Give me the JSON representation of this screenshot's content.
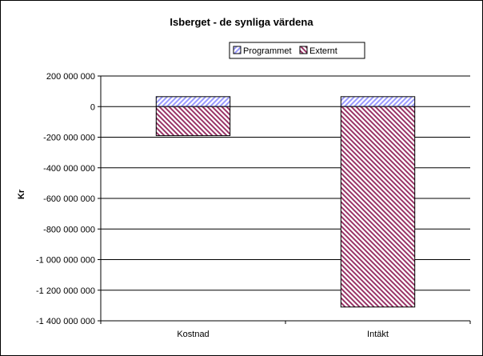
{
  "chart_data": {
    "type": "bar",
    "stacked": true,
    "title": "Isberget - de synliga värdena",
    "ylabel": "Kr",
    "xlabel": "",
    "categories": [
      "Kostnad",
      "Intäkt"
    ],
    "series": [
      {
        "name": "Programmet",
        "values": [
          65000000,
          65000000
        ],
        "color": "#9999ff",
        "pattern": "diagonal-up"
      },
      {
        "name": "Externt",
        "values": [
          -190000000,
          -1310000000
        ],
        "color": "#993366",
        "pattern": "diagonal-down"
      }
    ],
    "ylim": [
      -1400000000,
      200000000
    ],
    "yticks": [
      200000000,
      0,
      -200000000,
      -400000000,
      -600000000,
      -800000000,
      -1000000000,
      -1200000000,
      -1400000000
    ],
    "ytick_labels": [
      "200 000 000",
      "0",
      "-200 000 000",
      "-400 000 000",
      "-600 000 000",
      "-800 000 000",
      "-1 000 000 000",
      "-1 200 000 000",
      "-1 400 000 000"
    ],
    "grid": true,
    "legend_position": "top-right"
  }
}
